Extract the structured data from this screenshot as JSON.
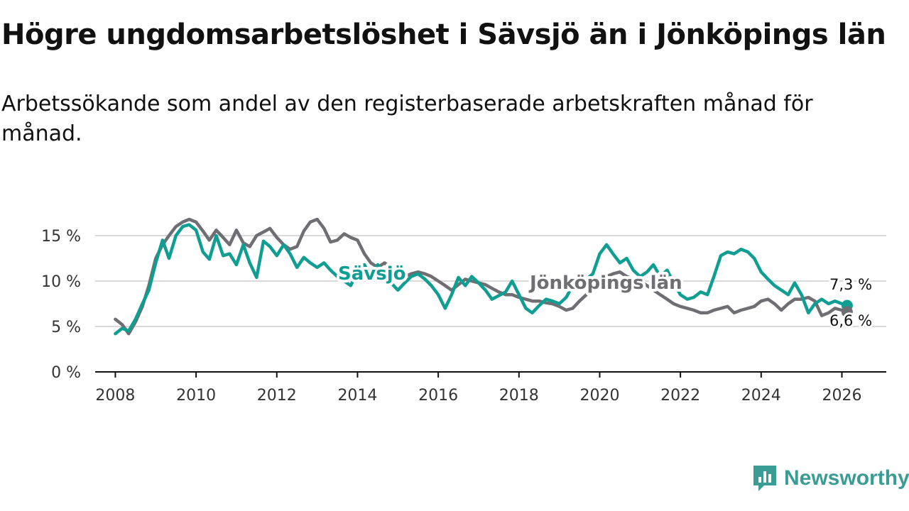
{
  "title": "Högre ungdomsarbetslöshet i Sävsjö än i Jönköpings län",
  "subtitle": "Arbetssökande som andel av den registerbaserade arbetskraften månad för månad.",
  "logo": {
    "text": "Newsworthy",
    "icon": "newsworthy-chart-icon",
    "color": "#3a9d93"
  },
  "colors": {
    "savsjo": "#0f9e91",
    "lan": "#6e6e73",
    "grid": "#d9d9d9",
    "axis": "#111111"
  },
  "chart_data": {
    "type": "line",
    "title": "Högre ungdomsarbetslöshet i Sävsjö än i Jönköpings län",
    "xlabel": "",
    "ylabel": "",
    "xlim": [
      2007.5,
      2027.1
    ],
    "ylim": [
      0,
      17.5
    ],
    "yticks": [
      0,
      5,
      10,
      15
    ],
    "ytick_labels": [
      "0 %",
      "5 %",
      "10 %",
      "15 %"
    ],
    "xticks": [
      2008,
      2010,
      2012,
      2014,
      2016,
      2018,
      2020,
      2022,
      2024,
      2026
    ],
    "xtick_labels": [
      "2008",
      "2010",
      "2012",
      "2014",
      "2016",
      "2018",
      "2020",
      "2022",
      "2024",
      "2026"
    ],
    "grid": true,
    "series": [
      {
        "name": "Sävsjö",
        "label": "Sävsjö",
        "end_label": "7,3 %",
        "x": [
          2008.0,
          2008.17,
          2008.33,
          2008.5,
          2008.67,
          2008.83,
          2009.0,
          2009.17,
          2009.33,
          2009.5,
          2009.67,
          2009.83,
          2010.0,
          2010.17,
          2010.33,
          2010.5,
          2010.67,
          2010.83,
          2011.0,
          2011.17,
          2011.33,
          2011.5,
          2011.67,
          2011.83,
          2012.0,
          2012.17,
          2012.33,
          2012.5,
          2012.67,
          2012.83,
          2013.0,
          2013.17,
          2013.33,
          2013.5,
          2013.67,
          2013.83,
          2014.0,
          2014.17,
          2014.33,
          2014.5,
          2014.67,
          2014.83,
          2015.0,
          2015.17,
          2015.33,
          2015.5,
          2015.67,
          2015.83,
          2016.0,
          2016.17,
          2016.33,
          2016.5,
          2016.67,
          2016.83,
          2017.0,
          2017.17,
          2017.33,
          2017.5,
          2017.67,
          2017.83,
          2018.0,
          2018.17,
          2018.33,
          2018.5,
          2018.67,
          2018.83,
          2019.0,
          2019.17,
          2019.33,
          2019.5,
          2019.67,
          2019.83,
          2020.0,
          2020.17,
          2020.33,
          2020.5,
          2020.67,
          2020.83,
          2021.0,
          2021.17,
          2021.33,
          2021.5,
          2021.67,
          2021.83,
          2022.0,
          2022.17,
          2022.33,
          2022.5,
          2022.67,
          2022.83,
          2023.0,
          2023.17,
          2023.33,
          2023.5,
          2023.67,
          2023.83,
          2024.0,
          2024.17,
          2024.33,
          2024.5,
          2024.67,
          2024.83,
          2025.0,
          2025.17,
          2025.33,
          2025.5,
          2025.67,
          2025.83,
          2026.0,
          2026.13
        ],
        "values": [
          4.2,
          4.8,
          4.5,
          5.8,
          7.5,
          9.0,
          12.0,
          14.5,
          12.5,
          15.0,
          16.0,
          16.2,
          15.6,
          13.2,
          12.4,
          15.0,
          12.8,
          13.0,
          11.8,
          14.0,
          12.0,
          10.4,
          14.4,
          13.8,
          12.8,
          14.0,
          13.0,
          11.5,
          12.6,
          12.0,
          11.5,
          12.0,
          11.2,
          10.5,
          10.0,
          9.5,
          11.0,
          11.8,
          10.5,
          11.8,
          10.2,
          9.8,
          9.0,
          9.8,
          10.5,
          10.8,
          10.2,
          9.5,
          8.5,
          7.0,
          8.5,
          10.4,
          9.5,
          10.5,
          9.8,
          9.0,
          8.0,
          8.4,
          8.8,
          10.0,
          8.5,
          7.0,
          6.5,
          7.3,
          8.0,
          7.8,
          7.5,
          8.2,
          9.5,
          10.8,
          10.2,
          10.8,
          13.0,
          14.0,
          13.0,
          12.0,
          12.5,
          11.2,
          10.5,
          11.0,
          11.8,
          10.5,
          11.2,
          9.8,
          8.5,
          8.0,
          8.2,
          8.8,
          8.5,
          10.5,
          12.8,
          13.2,
          13.0,
          13.5,
          13.2,
          12.5,
          11.0,
          10.2,
          9.5,
          9.0,
          8.5,
          9.8,
          8.5,
          6.5,
          7.5,
          8.0,
          7.5,
          7.8,
          7.5,
          7.3
        ]
      },
      {
        "name": "Jönköpings län",
        "label": "Jönköpings län",
        "end_label": "6,6 %",
        "x": [
          2008.0,
          2008.17,
          2008.33,
          2008.5,
          2008.67,
          2008.83,
          2009.0,
          2009.17,
          2009.33,
          2009.5,
          2009.67,
          2009.83,
          2010.0,
          2010.17,
          2010.33,
          2010.5,
          2010.67,
          2010.83,
          2011.0,
          2011.17,
          2011.33,
          2011.5,
          2011.67,
          2011.83,
          2012.0,
          2012.17,
          2012.33,
          2012.5,
          2012.67,
          2012.83,
          2013.0,
          2013.17,
          2013.33,
          2013.5,
          2013.67,
          2013.83,
          2014.0,
          2014.17,
          2014.33,
          2014.5,
          2014.67,
          2014.83,
          2015.0,
          2015.17,
          2015.33,
          2015.5,
          2015.67,
          2015.83,
          2016.0,
          2016.17,
          2016.33,
          2016.5,
          2016.67,
          2016.83,
          2017.0,
          2017.17,
          2017.33,
          2017.5,
          2017.67,
          2017.83,
          2018.0,
          2018.17,
          2018.33,
          2018.5,
          2018.67,
          2018.83,
          2019.0,
          2019.17,
          2019.33,
          2019.5,
          2019.67,
          2019.83,
          2020.0,
          2020.17,
          2020.33,
          2020.5,
          2020.67,
          2020.83,
          2021.0,
          2021.17,
          2021.33,
          2021.5,
          2021.67,
          2021.83,
          2022.0,
          2022.17,
          2022.33,
          2022.5,
          2022.67,
          2022.83,
          2023.0,
          2023.17,
          2023.33,
          2023.5,
          2023.67,
          2023.83,
          2024.0,
          2024.17,
          2024.33,
          2024.5,
          2024.67,
          2024.83,
          2025.0,
          2025.17,
          2025.33,
          2025.5,
          2025.67,
          2025.83,
          2026.0,
          2026.13
        ],
        "values": [
          5.8,
          5.2,
          4.2,
          5.5,
          7.2,
          9.5,
          12.5,
          14.0,
          15.0,
          16.0,
          16.5,
          16.8,
          16.5,
          15.5,
          14.5,
          15.6,
          14.8,
          14.0,
          15.6,
          14.2,
          13.8,
          15.0,
          15.4,
          15.8,
          14.8,
          14.0,
          13.5,
          13.8,
          15.5,
          16.5,
          16.8,
          15.8,
          14.3,
          14.5,
          15.2,
          14.8,
          14.5,
          13.0,
          12.0,
          11.5,
          12.0,
          11.5,
          11.0,
          10.5,
          10.8,
          11.0,
          10.8,
          10.5,
          10.0,
          9.5,
          9.0,
          9.6,
          10.2,
          10.0,
          9.8,
          9.6,
          9.2,
          8.8,
          8.5,
          8.5,
          8.2,
          8.0,
          7.8,
          7.8,
          7.6,
          7.5,
          7.2,
          6.8,
          7.0,
          7.8,
          8.5,
          9.2,
          10.0,
          10.5,
          10.8,
          11.0,
          10.5,
          10.2,
          10.0,
          9.5,
          9.0,
          8.5,
          8.0,
          7.5,
          7.2,
          7.0,
          6.8,
          6.5,
          6.5,
          6.8,
          7.0,
          7.2,
          6.5,
          6.8,
          7.0,
          7.2,
          7.8,
          8.0,
          7.5,
          6.8,
          7.5,
          8.0,
          8.0,
          8.2,
          7.8,
          6.2,
          6.5,
          7.0,
          6.8,
          6.6
        ]
      }
    ]
  }
}
